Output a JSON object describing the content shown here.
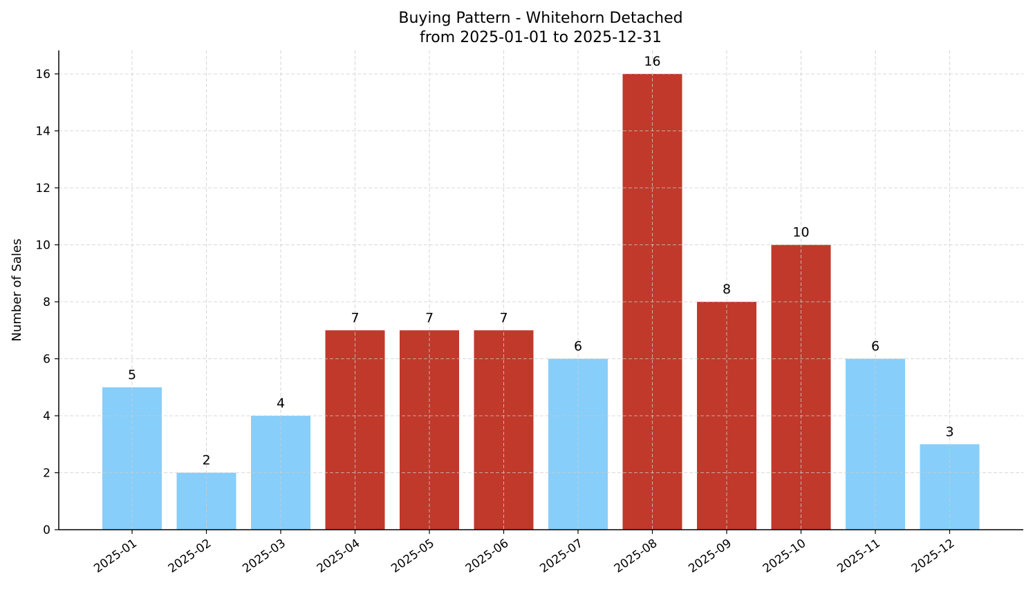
{
  "chart_data": {
    "type": "bar",
    "title": "Buying Pattern - Whitehorn Detached",
    "subtitle": "from 2025-01-01 to 2025-12-31",
    "xlabel": "",
    "ylabel": "Number of Sales",
    "categories": [
      "2025-01",
      "2025-02",
      "2025-03",
      "2025-04",
      "2025-05",
      "2025-06",
      "2025-07",
      "2025-08",
      "2025-09",
      "2025-10",
      "2025-11",
      "2025-12"
    ],
    "values": [
      5,
      2,
      4,
      7,
      7,
      7,
      6,
      16,
      8,
      10,
      6,
      3
    ],
    "highlighted": [
      false,
      false,
      false,
      true,
      true,
      true,
      false,
      true,
      true,
      true,
      false,
      false
    ],
    "ylim": [
      0,
      16.8
    ],
    "yticks": [
      0,
      2,
      4,
      6,
      8,
      10,
      12,
      14,
      16
    ],
    "grid": true,
    "colors": {
      "normal": "#87CEFA",
      "highlight": "#C0392B",
      "grid": "#cccccc"
    }
  }
}
